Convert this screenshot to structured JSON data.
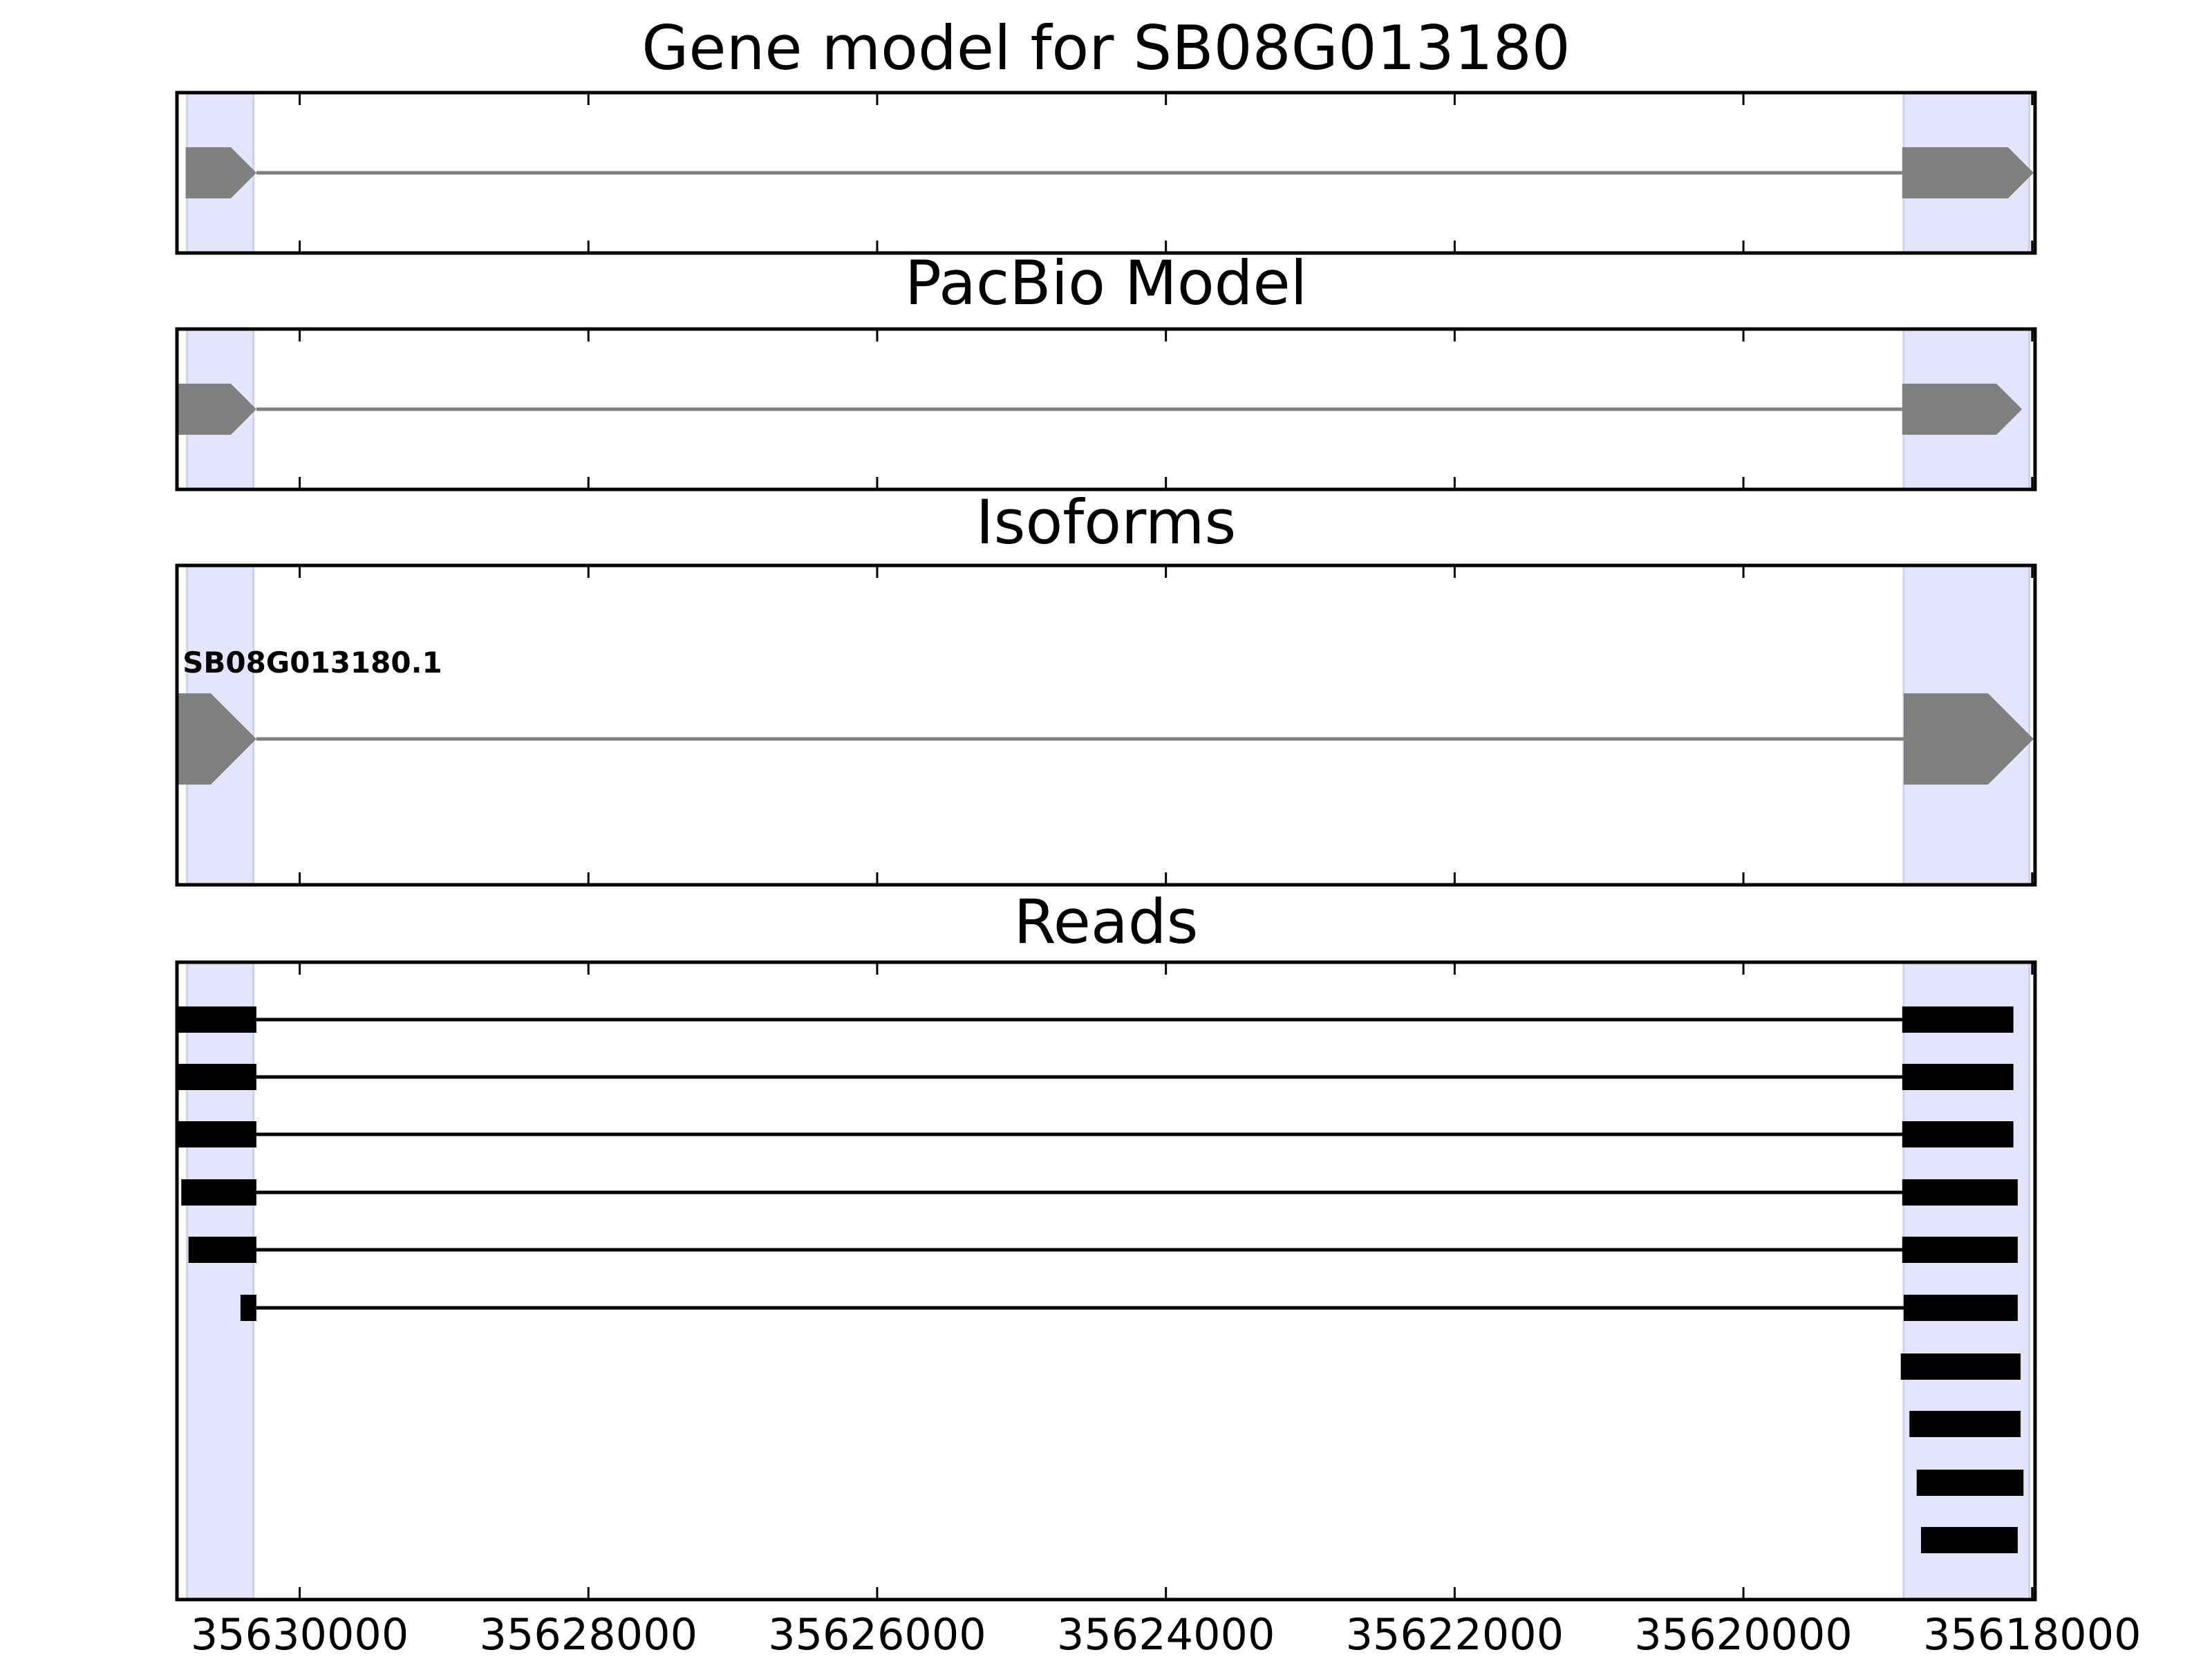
{
  "chart_data": {
    "type": "gene-model",
    "x_axis": {
      "min": 35630850,
      "max": 35617980,
      "reversed": true,
      "ticks": [
        35630000,
        35628000,
        35626000,
        35624000,
        35622000,
        35620000,
        35618000
      ],
      "tick_labels": [
        "35630000",
        "35628000",
        "35626000",
        "35624000",
        "35622000",
        "35620000",
        "35618000"
      ]
    },
    "highlight_regions": [
      {
        "start": 35630780,
        "end": 35630320
      },
      {
        "start": 35618890,
        "end": 35618020
      }
    ],
    "panels": [
      {
        "id": "gene-model",
        "title": "Gene model for SB08G013180",
        "features": [
          {
            "exons": [
              [
                35630790,
                35630300
              ],
              [
                35618900,
                35617990
              ]
            ]
          }
        ]
      },
      {
        "id": "pacbio-model",
        "title": "PacBio Model",
        "features": [
          {
            "exons": [
              [
                35630840,
                35630300
              ],
              [
                35618900,
                35618070
              ]
            ]
          }
        ]
      },
      {
        "id": "isoforms",
        "title": "Isoforms",
        "features": [
          {
            "label": "SB08G013180.1",
            "exons": [
              [
                35630840,
                35630300
              ],
              [
                35618890,
                35617990
              ]
            ]
          }
        ]
      },
      {
        "id": "reads",
        "title": "Reads",
        "features": [
          {
            "exons": [
              [
                35630840,
                35630300
              ],
              [
                35618900,
                35618130
              ]
            ]
          },
          {
            "exons": [
              [
                35630840,
                35630300
              ],
              [
                35618900,
                35618130
              ]
            ]
          },
          {
            "exons": [
              [
                35630840,
                35630300
              ],
              [
                35618900,
                35618130
              ]
            ]
          },
          {
            "exons": [
              [
                35630820,
                35630300
              ],
              [
                35618900,
                35618100
              ]
            ]
          },
          {
            "exons": [
              [
                35630770,
                35630300
              ],
              [
                35618900,
                35618100
              ]
            ]
          },
          {
            "exons": [
              [
                35630410,
                35630300
              ],
              [
                35618890,
                35618100
              ]
            ]
          },
          {
            "exons": [
              [
                35618910,
                35618080
              ]
            ]
          },
          {
            "exons": [
              [
                35618850,
                35618080
              ]
            ]
          },
          {
            "exons": [
              [
                35618800,
                35618060
              ]
            ]
          },
          {
            "exons": [
              [
                35618770,
                35618100
              ]
            ]
          }
        ]
      }
    ]
  }
}
